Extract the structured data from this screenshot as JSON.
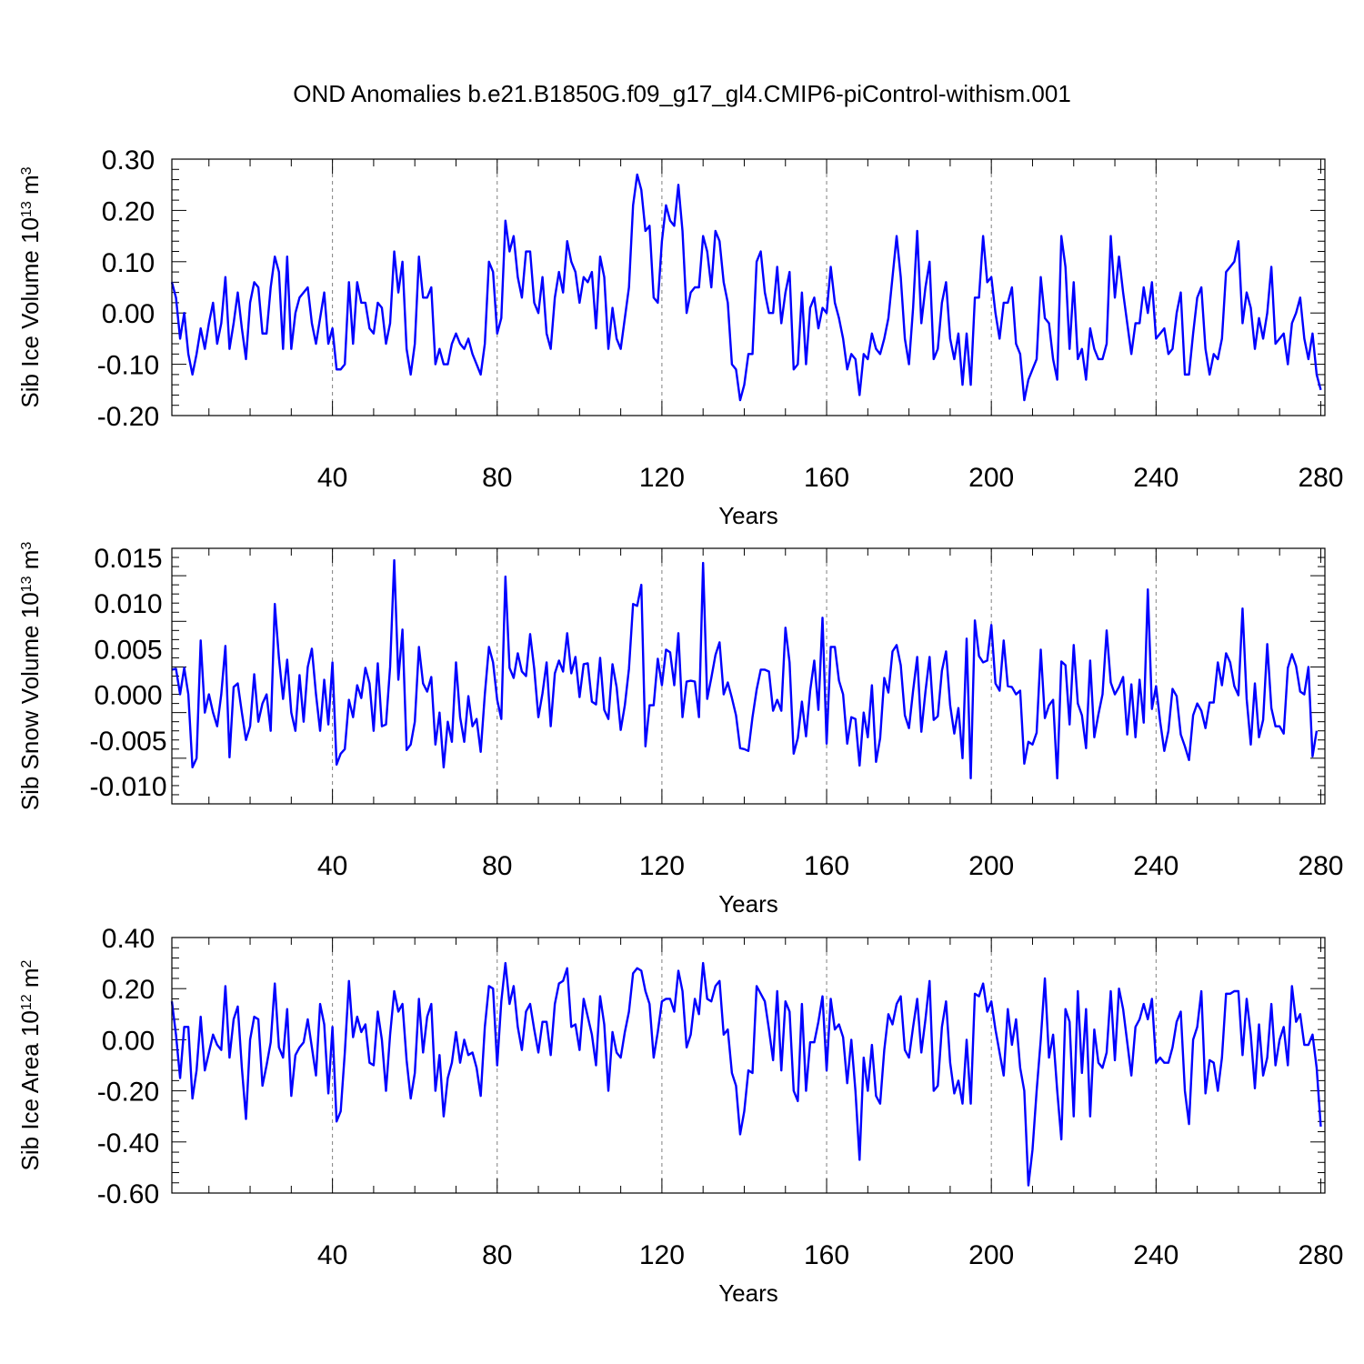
{
  "figure": {
    "title": "OND Anomalies b.e21.B1850G.f09_g17_gl4.CMIP6-piControl-withism.001"
  },
  "colors": {
    "line": "#0000ff",
    "axis": "#000000",
    "grid": "#808080"
  },
  "chart_data": [
    {
      "type": "line",
      "name": "sib-ice-volume",
      "ylabel_main": "Sib Ice Volume 10",
      "ylabel_exp": "13",
      "ylabel_unit": " m",
      "ylabel_unit_exp": "3",
      "xlabel": "Years",
      "xlim": [
        1,
        281
      ],
      "ylim": [
        -0.2,
        0.3
      ],
      "xticks": [
        40,
        80,
        120,
        160,
        200,
        240,
        280
      ],
      "xtick_labels": [
        "40",
        "80",
        "120",
        "160",
        "200",
        "240",
        "280"
      ],
      "yticks": [
        -0.2,
        -0.1,
        0.0,
        0.1,
        0.2,
        0.3
      ],
      "ytick_labels": [
        "-0.20",
        "-0.10",
        "0.00",
        "0.10",
        "0.20",
        "0.30"
      ],
      "grid_x": [
        40,
        80,
        120,
        160,
        200,
        240
      ],
      "values": [
        0.06,
        0.03,
        -0.05,
        0.0,
        -0.08,
        -0.12,
        -0.08,
        -0.03,
        -0.07,
        -0.02,
        0.02,
        -0.06,
        -0.02,
        0.07,
        -0.07,
        -0.02,
        0.04,
        -0.03,
        -0.09,
        0.02,
        0.06,
        0.05,
        -0.04,
        -0.04,
        0.05,
        0.11,
        0.08,
        -0.07,
        0.11,
        -0.07,
        0.0,
        0.03,
        0.04,
        0.05,
        -0.02,
        -0.06,
        -0.01,
        0.04,
        -0.06,
        -0.03,
        -0.11,
        -0.11,
        -0.1,
        0.06,
        -0.06,
        0.06,
        0.02,
        0.02,
        -0.03,
        -0.04,
        0.02,
        0.01,
        -0.06,
        -0.02,
        0.12,
        0.04,
        0.1,
        -0.07,
        -0.12,
        -0.06,
        0.11,
        0.03,
        0.03,
        0.05,
        -0.1,
        -0.07,
        -0.1,
        -0.1,
        -0.06,
        -0.04,
        -0.06,
        -0.07,
        -0.05,
        -0.08,
        -0.1,
        -0.12,
        -0.06,
        0.1,
        0.08,
        -0.04,
        -0.01,
        0.18,
        0.12,
        0.15,
        0.07,
        0.03,
        0.12,
        0.12,
        0.02,
        0.0,
        0.07,
        -0.04,
        -0.07,
        0.03,
        0.08,
        0.04,
        0.14,
        0.1,
        0.08,
        0.02,
        0.07,
        0.06,
        0.08,
        -0.03,
        0.11,
        0.07,
        -0.07,
        0.01,
        -0.05,
        -0.07,
        -0.01,
        0.05,
        0.21,
        0.27,
        0.24,
        0.16,
        0.17,
        0.03,
        0.02,
        0.14,
        0.21,
        0.18,
        0.17,
        0.25,
        0.16,
        0.0,
        0.04,
        0.05,
        0.05,
        0.15,
        0.12,
        0.05,
        0.16,
        0.14,
        0.06,
        0.02,
        -0.1,
        -0.11,
        -0.17,
        -0.14,
        -0.08,
        -0.08,
        0.1,
        0.12,
        0.04,
        0.0,
        0.0,
        0.09,
        -0.02,
        0.04,
        0.08,
        -0.11,
        -0.1,
        0.04,
        -0.1,
        0.01,
        0.03,
        -0.03,
        0.01,
        0.0,
        0.09,
        0.02,
        -0.01,
        -0.05,
        -0.11,
        -0.08,
        -0.09,
        -0.16,
        -0.08,
        -0.09,
        -0.04,
        -0.07,
        -0.08,
        -0.05,
        -0.01,
        0.07,
        0.15,
        0.07,
        -0.05,
        -0.1,
        0.01,
        0.16,
        -0.02,
        0.05,
        0.1,
        -0.09,
        -0.07,
        0.02,
        0.06,
        -0.05,
        -0.09,
        -0.04,
        -0.14,
        -0.04,
        -0.14,
        0.03,
        0.03,
        0.15,
        0.06,
        0.07,
        0.0,
        -0.05,
        0.02,
        0.02,
        0.05,
        -0.06,
        -0.08,
        -0.17,
        -0.13,
        -0.11,
        -0.09,
        0.07,
        -0.01,
        -0.02,
        -0.09,
        -0.13,
        0.15,
        0.09,
        -0.07,
        0.06,
        -0.09,
        -0.07,
        -0.13,
        -0.03,
        -0.07,
        -0.09,
        -0.09,
        -0.06,
        0.15,
        0.03,
        0.11,
        0.04,
        -0.02,
        -0.08,
        -0.02,
        -0.02,
        0.05,
        0.0,
        0.06,
        -0.05,
        -0.04,
        -0.03,
        -0.08,
        -0.07,
        0.0,
        0.04,
        -0.12,
        -0.12,
        -0.04,
        0.03,
        0.05,
        -0.07,
        -0.12,
        -0.08,
        -0.09,
        -0.05,
        0.08,
        0.09,
        0.1,
        0.14,
        -0.02,
        0.04,
        0.01,
        -0.07,
        -0.01,
        -0.05,
        0.0,
        0.09,
        -0.06,
        -0.05,
        -0.04,
        -0.1,
        -0.02,
        0.0,
        0.03,
        -0.05,
        -0.09,
        -0.04,
        -0.12,
        -0.15
      ]
    },
    {
      "type": "line",
      "name": "sib-snow-volume",
      "ylabel_main": "Sib Snow Volume 10",
      "ylabel_exp": "13",
      "ylabel_unit": " m",
      "ylabel_unit_exp": "3",
      "xlabel": "Years",
      "xlim": [
        1,
        281
      ],
      "ylim": [
        -0.012,
        0.016
      ],
      "xticks": [
        40,
        80,
        120,
        160,
        200,
        240,
        280
      ],
      "xtick_labels": [
        "40",
        "80",
        "120",
        "160",
        "200",
        "240",
        "280"
      ],
      "yticks": [
        -0.01,
        -0.005,
        0.0,
        0.005,
        0.01,
        0.015
      ],
      "ytick_labels": [
        "-0.010",
        "-0.005",
        "0.000",
        "0.005",
        "0.010",
        "0.015"
      ],
      "grid_x": [
        40,
        80,
        120,
        160,
        200,
        240
      ],
      "values": [
        0.0027,
        0.0028,
        0.0,
        0.0029,
        0.0,
        -0.008,
        -0.007,
        0.0059,
        -0.002,
        0.0,
        -0.002,
        -0.0035,
        0.0,
        0.0053,
        -0.0069,
        0.0008,
        0.0012,
        -0.002,
        -0.005,
        -0.0035,
        0.0022,
        -0.003,
        -0.001,
        0.0,
        -0.004,
        0.0099,
        0.004,
        -0.0005,
        0.0038,
        -0.002,
        -0.004,
        0.0021,
        -0.003,
        0.003,
        0.005,
        0.0,
        -0.004,
        0.0016,
        -0.0033,
        0.0035,
        -0.0077,
        -0.0065,
        -0.006,
        -0.0006,
        -0.0025,
        0.001,
        -0.0004,
        0.0029,
        0.0012,
        -0.004,
        0.0034,
        -0.0035,
        -0.0033,
        0.003,
        0.0147,
        0.0016,
        0.0071,
        -0.0061,
        -0.0055,
        -0.003,
        0.0052,
        0.0012,
        0.0003,
        0.0019,
        -0.0055,
        -0.002,
        -0.008,
        -0.003,
        -0.0052,
        0.0035,
        -0.0025,
        -0.0052,
        -0.0002,
        -0.0035,
        -0.0027,
        -0.0063,
        0.0,
        0.0052,
        0.0035,
        -0.0006,
        -0.0027,
        0.0129,
        0.0029,
        0.0018,
        0.0045,
        0.0025,
        0.002,
        0.0066,
        0.0028,
        -0.0025,
        0.0001,
        0.0035,
        -0.0035,
        0.0023,
        0.0037,
        0.0025,
        0.0067,
        0.0023,
        0.0041,
        -0.0003,
        0.0033,
        0.0034,
        -0.0008,
        -0.0011,
        0.004,
        -0.0017,
        -0.0027,
        0.0033,
        0.0008,
        -0.0039,
        -0.0012,
        0.0028,
        0.0099,
        0.0097,
        0.012,
        -0.0057,
        -0.0012,
        -0.0012,
        0.0039,
        0.001,
        0.0049,
        0.0046,
        0.001,
        0.0067,
        -0.0025,
        0.0014,
        0.0015,
        0.0014,
        -0.0025,
        0.0144,
        -0.0005,
        0.0018,
        0.0043,
        0.0057,
        0.0,
        0.0013,
        -0.0004,
        -0.0023,
        -0.0059,
        -0.006,
        -0.0062,
        -0.0025,
        0.0005,
        0.0027,
        0.0027,
        0.0025,
        -0.0018,
        -0.0006,
        -0.0018,
        0.0073,
        0.0035,
        -0.0065,
        -0.0048,
        -0.0008,
        -0.0046,
        0.0004,
        0.0037,
        -0.0017,
        0.0084,
        -0.0054,
        0.0052,
        0.0052,
        0.0015,
        0.0,
        -0.0054,
        -0.0025,
        -0.0027,
        -0.0078,
        -0.002,
        -0.0047,
        0.001,
        -0.0074,
        -0.0048,
        0.0018,
        0.0002,
        0.0047,
        0.0054,
        0.0032,
        -0.0023,
        -0.0037,
        0.0004,
        0.0041,
        -0.0041,
        0.0003,
        0.0041,
        -0.0028,
        -0.0024,
        0.0026,
        0.0047,
        -0.0012,
        -0.0043,
        -0.0015,
        -0.007,
        0.0061,
        -0.0092,
        0.0081,
        0.0042,
        0.0035,
        0.0037,
        0.0076,
        0.0012,
        0.0004,
        0.0059,
        0.0009,
        0.0008,
        0.0,
        0.0004,
        -0.0076,
        -0.0052,
        -0.0055,
        -0.0042,
        0.0049,
        -0.0026,
        -0.0012,
        -0.0006,
        -0.0092,
        0.0036,
        0.0032,
        -0.0033,
        0.0054,
        -0.001,
        -0.0023,
        -0.0059,
        0.0037,
        -0.0047,
        -0.0022,
        0.0,
        0.007,
        0.0013,
        0.0,
        0.0008,
        0.0019,
        -0.0044,
        0.0011,
        -0.0047,
        0.0016,
        -0.0031,
        0.0115,
        -0.0016,
        0.0009,
        -0.003,
        -0.0062,
        -0.004,
        0.0006,
        -0.0002,
        -0.0044,
        -0.0057,
        -0.0072,
        -0.0023,
        -0.001,
        -0.0018,
        -0.0037,
        -0.0009,
        -0.0009,
        0.0035,
        0.001,
        0.0045,
        0.0035,
        0.0009,
        -0.0001,
        0.0094,
        -0.0005,
        -0.0055,
        0.0012,
        -0.0047,
        -0.0028,
        0.0055,
        -0.0015,
        -0.0035,
        -0.0035,
        -0.0043,
        0.0029,
        0.0044,
        0.0031,
        0.0003,
        0.0,
        0.003,
        -0.0068,
        -0.004
      ]
    },
    {
      "type": "line",
      "name": "sib-ice-area",
      "ylabel_main": "Sib Ice Area 10",
      "ylabel_exp": "12",
      "ylabel_unit": " m",
      "ylabel_unit_exp": "2",
      "xlabel": "Years",
      "xlim": [
        1,
        281
      ],
      "ylim": [
        -0.6,
        0.4
      ],
      "xticks": [
        40,
        80,
        120,
        160,
        200,
        240,
        280
      ],
      "xtick_labels": [
        "40",
        "80",
        "120",
        "160",
        "200",
        "240",
        "280"
      ],
      "yticks": [
        -0.6,
        -0.4,
        -0.2,
        0.0,
        0.2,
        0.4
      ],
      "ytick_labels": [
        "-0.60",
        "-0.40",
        "-0.20",
        "0.00",
        "0.20",
        "0.40"
      ],
      "grid_x": [
        40,
        80,
        120,
        160,
        200,
        240
      ],
      "values": [
        0.15,
        0.02,
        -0.15,
        0.05,
        0.05,
        -0.23,
        -0.12,
        0.09,
        -0.12,
        -0.05,
        0.02,
        -0.02,
        -0.04,
        0.21,
        -0.07,
        0.08,
        0.13,
        -0.11,
        -0.31,
        0.0,
        0.09,
        0.08,
        -0.18,
        -0.1,
        -0.01,
        0.22,
        -0.03,
        -0.07,
        0.12,
        -0.22,
        -0.06,
        -0.03,
        -0.01,
        0.08,
        -0.03,
        -0.14,
        0.14,
        0.06,
        -0.21,
        0.05,
        -0.32,
        -0.28,
        -0.05,
        0.23,
        0.01,
        0.09,
        0.03,
        0.06,
        -0.09,
        -0.1,
        0.11,
        0.0,
        -0.2,
        0.02,
        0.19,
        0.11,
        0.14,
        -0.08,
        -0.23,
        -0.13,
        0.16,
        -0.05,
        0.09,
        0.14,
        -0.2,
        -0.06,
        -0.3,
        -0.15,
        -0.09,
        0.03,
        -0.09,
        0.0,
        -0.06,
        -0.05,
        -0.11,
        -0.22,
        0.05,
        0.21,
        0.2,
        -0.1,
        0.15,
        0.3,
        0.14,
        0.21,
        0.05,
        -0.04,
        0.11,
        0.14,
        0.04,
        -0.05,
        0.07,
        0.07,
        -0.06,
        0.14,
        0.22,
        0.23,
        0.28,
        0.05,
        0.06,
        -0.04,
        0.16,
        0.09,
        0.02,
        -0.1,
        0.17,
        0.06,
        -0.2,
        0.03,
        -0.05,
        -0.07,
        0.03,
        0.11,
        0.26,
        0.28,
        0.27,
        0.19,
        0.14,
        -0.07,
        0.03,
        0.15,
        0.16,
        0.16,
        0.11,
        0.27,
        0.19,
        -0.03,
        0.02,
        0.16,
        0.1,
        0.3,
        0.16,
        0.15,
        0.21,
        0.23,
        0.02,
        0.04,
        -0.13,
        -0.18,
        -0.37,
        -0.28,
        -0.12,
        -0.13,
        0.21,
        0.18,
        0.15,
        0.04,
        -0.08,
        0.19,
        -0.12,
        0.15,
        0.11,
        -0.2,
        -0.24,
        0.14,
        -0.2,
        -0.01,
        -0.01,
        0.07,
        0.17,
        -0.12,
        0.16,
        0.04,
        0.06,
        0.01,
        -0.17,
        0.0,
        -0.2,
        -0.47,
        -0.07,
        -0.2,
        -0.02,
        -0.22,
        -0.25,
        -0.04,
        0.1,
        0.06,
        0.14,
        0.17,
        -0.04,
        -0.07,
        0.05,
        0.16,
        -0.05,
        0.08,
        0.23,
        -0.2,
        -0.18,
        0.05,
        0.15,
        -0.09,
        -0.21,
        -0.16,
        -0.25,
        0.0,
        -0.25,
        0.18,
        0.17,
        0.22,
        0.11,
        0.15,
        0.04,
        -0.05,
        -0.14,
        0.12,
        -0.02,
        0.08,
        -0.11,
        -0.2,
        -0.57,
        -0.43,
        -0.2,
        0.0,
        0.24,
        -0.07,
        0.02,
        -0.2,
        -0.39,
        0.12,
        0.07,
        -0.3,
        0.19,
        -0.13,
        0.12,
        -0.3,
        0.04,
        -0.09,
        -0.11,
        -0.05,
        0.19,
        -0.08,
        0.2,
        0.12,
        -0.01,
        -0.14,
        0.05,
        0.08,
        0.14,
        0.08,
        0.16,
        -0.09,
        -0.07,
        -0.09,
        -0.09,
        -0.03,
        0.07,
        0.11,
        -0.2,
        -0.33,
        0.0,
        0.05,
        0.19,
        -0.21,
        -0.08,
        -0.09,
        -0.2,
        -0.07,
        0.18,
        0.18,
        0.19,
        0.19,
        -0.06,
        0.16,
        0.02,
        -0.19,
        0.06,
        -0.14,
        -0.07,
        0.14,
        -0.1,
        0.0,
        0.05,
        -0.1,
        0.21,
        0.07,
        0.1,
        -0.02,
        -0.02,
        0.02,
        -0.11,
        -0.34
      ]
    }
  ]
}
